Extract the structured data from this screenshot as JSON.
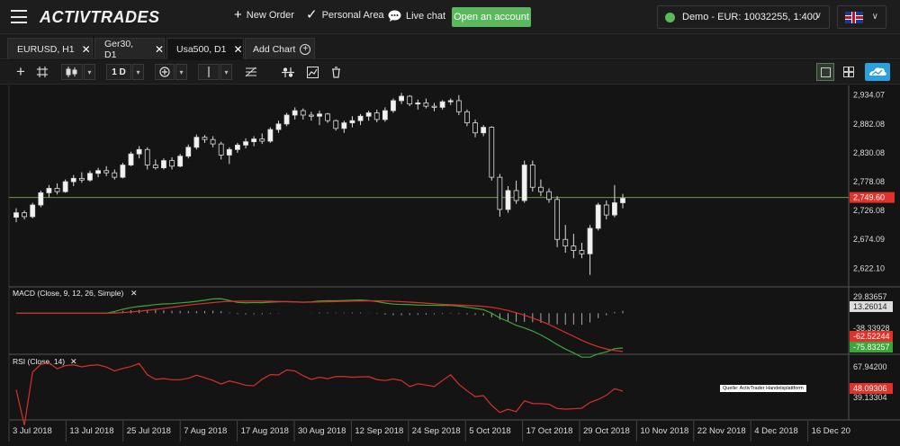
{
  "topbar": {
    "logo": "ACTIVTRADES",
    "nav": [
      {
        "label": "New Order",
        "icon": "plus-icon"
      },
      {
        "label": "Personal Area",
        "icon": "checkmark-icon"
      },
      {
        "label": "Live chat",
        "icon": "chat-bubble-icon"
      }
    ],
    "open_account": "Open an account",
    "account_label": "Demo - EUR: 10032255, 1:400",
    "language_flag": "uk-flag-icon"
  },
  "tabs": [
    {
      "label": "EURUSD, H1",
      "active": false
    },
    {
      "label": "Ger30, D1",
      "active": false
    },
    {
      "label": "Usa500, D1",
      "active": true
    }
  ],
  "add_chart": "Add Chart",
  "toolbar": {
    "timeframe": "1 D"
  },
  "chart_data": {
    "type": "candlestick",
    "symbol": "Usa500",
    "timeframe": "D1",
    "current_price": "2,749.60",
    "price_axis": [
      "2,934.07",
      "2,882.08",
      "2,830.08",
      "2,778.08",
      "2,726.08",
      "2,674.09",
      "2,622.10"
    ],
    "price_range": [
      2595,
      2945
    ],
    "x_labels": [
      "3 Jul 2018",
      "13 Jul 2018",
      "25 Jul 2018",
      "7 Aug 2018",
      "17 Aug 2018",
      "30 Aug 2018",
      "12 Sep 2018",
      "24 Sep 2018",
      "5 Oct 2018",
      "17 Oct 2018",
      "29 Oct 2018",
      "10 Nov 2018",
      "22 Nov 2018",
      "4 Dec 2018",
      "16 Dec 20"
    ],
    "candles": [
      [
        2714,
        2730,
        2705,
        2722
      ],
      [
        2722,
        2726,
        2710,
        2715
      ],
      [
        2715,
        2740,
        2712,
        2736
      ],
      [
        2736,
        2762,
        2732,
        2758
      ],
      [
        2758,
        2772,
        2750,
        2766
      ],
      [
        2766,
        2775,
        2755,
        2760
      ],
      [
        2760,
        2782,
        2758,
        2778
      ],
      [
        2778,
        2790,
        2770,
        2784
      ],
      [
        2784,
        2795,
        2776,
        2781
      ],
      [
        2781,
        2798,
        2778,
        2793
      ],
      [
        2793,
        2803,
        2786,
        2798
      ],
      [
        2798,
        2806,
        2788,
        2794
      ],
      [
        2794,
        2800,
        2782,
        2786
      ],
      [
        2786,
        2812,
        2784,
        2808
      ],
      [
        2808,
        2832,
        2806,
        2828
      ],
      [
        2828,
        2842,
        2820,
        2836
      ],
      [
        2836,
        2840,
        2800,
        2808
      ],
      [
        2808,
        2818,
        2800,
        2803
      ],
      [
        2803,
        2820,
        2800,
        2816
      ],
      [
        2816,
        2822,
        2800,
        2806
      ],
      [
        2806,
        2828,
        2804,
        2824
      ],
      [
        2824,
        2845,
        2820,
        2840
      ],
      [
        2840,
        2863,
        2836,
        2858
      ],
      [
        2858,
        2862,
        2848,
        2854
      ],
      [
        2854,
        2860,
        2840,
        2846
      ],
      [
        2846,
        2850,
        2818,
        2826
      ],
      [
        2826,
        2840,
        2810,
        2836
      ],
      [
        2836,
        2848,
        2830,
        2844
      ],
      [
        2844,
        2856,
        2838,
        2850
      ],
      [
        2850,
        2860,
        2842,
        2855
      ],
      [
        2855,
        2865,
        2846,
        2851
      ],
      [
        2851,
        2876,
        2848,
        2872
      ],
      [
        2872,
        2888,
        2866,
        2882
      ],
      [
        2882,
        2902,
        2878,
        2898
      ],
      [
        2898,
        2912,
        2890,
        2906
      ],
      [
        2906,
        2910,
        2890,
        2898
      ],
      [
        2898,
        2904,
        2888,
        2896
      ],
      [
        2896,
        2906,
        2880,
        2900
      ],
      [
        2900,
        2902,
        2884,
        2888
      ],
      [
        2888,
        2890,
        2870,
        2874
      ],
      [
        2874,
        2888,
        2866,
        2884
      ],
      [
        2884,
        2896,
        2876,
        2888
      ],
      [
        2888,
        2900,
        2880,
        2896
      ],
      [
        2896,
        2906,
        2888,
        2902
      ],
      [
        2902,
        2908,
        2885,
        2890
      ],
      [
        2890,
        2912,
        2886,
        2906
      ],
      [
        2906,
        2928,
        2902,
        2924
      ],
      [
        2924,
        2938,
        2918,
        2932
      ],
      [
        2932,
        2934,
        2914,
        2918
      ],
      [
        2918,
        2926,
        2908,
        2920
      ],
      [
        2920,
        2928,
        2910,
        2914
      ],
      [
        2914,
        2920,
        2905,
        2912
      ],
      [
        2912,
        2925,
        2908,
        2922
      ],
      [
        2922,
        2928,
        2916,
        2924
      ],
      [
        2924,
        2934,
        2898,
        2904
      ],
      [
        2904,
        2908,
        2878,
        2884
      ],
      [
        2884,
        2890,
        2858,
        2866
      ],
      [
        2866,
        2880,
        2860,
        2876
      ],
      [
        2876,
        2878,
        2780,
        2786
      ],
      [
        2786,
        2792,
        2715,
        2728
      ],
      [
        2728,
        2770,
        2722,
        2762
      ],
      [
        2762,
        2780,
        2738,
        2744
      ],
      [
        2744,
        2816,
        2740,
        2808
      ],
      [
        2808,
        2816,
        2760,
        2768
      ],
      [
        2768,
        2782,
        2752,
        2760
      ],
      [
        2760,
        2766,
        2740,
        2746
      ],
      [
        2746,
        2752,
        2660,
        2674
      ],
      [
        2674,
        2700,
        2650,
        2662
      ],
      [
        2662,
        2684,
        2640,
        2654
      ],
      [
        2654,
        2668,
        2640,
        2648
      ],
      [
        2648,
        2700,
        2610,
        2694
      ],
      [
        2694,
        2740,
        2690,
        2736
      ],
      [
        2736,
        2744,
        2710,
        2718
      ],
      [
        2718,
        2772,
        2714,
        2740
      ],
      [
        2740,
        2756,
        2730,
        2748
      ]
    ],
    "macd": {
      "label": "MACD (Close, 9, 12, 26, Simple)",
      "axis": [
        "29.83657",
        "-38.33928"
      ],
      "values": [
        "13.26014",
        "-62.52244",
        "-75.83257"
      ]
    },
    "rsi": {
      "label": "RSI (Close, 14)",
      "axis": [
        "67.94200",
        "39.13304"
      ],
      "value": "48.09306"
    }
  },
  "watermark": "Quelle: ActivTrader Handelsplattform"
}
